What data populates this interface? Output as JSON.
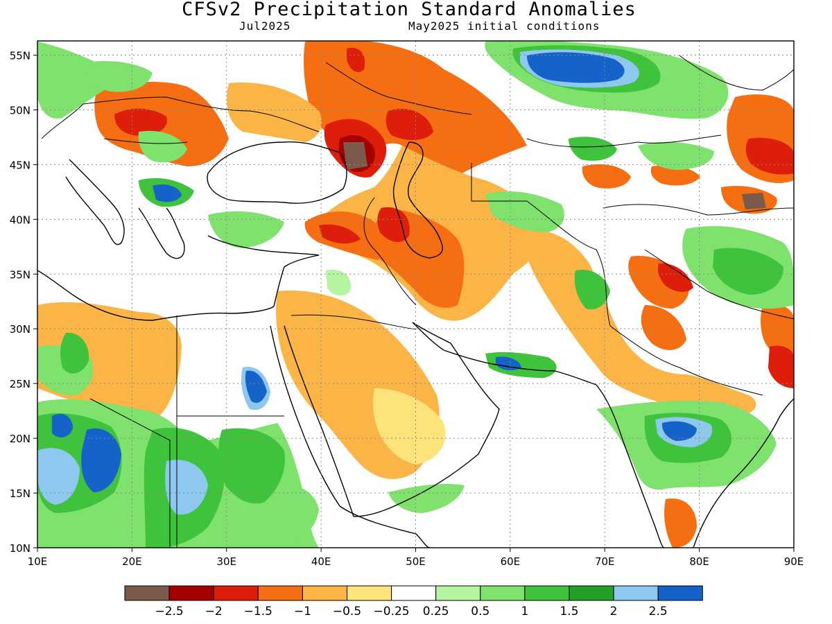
{
  "title": "CFSv2 Precipitation Standard Anomalies",
  "valid_month": "Jul2025",
  "initial_conditions": "May2025 initial conditions",
  "lon_ticks": [
    "10E",
    "20E",
    "30E",
    "40E",
    "50E",
    "60E",
    "70E",
    "80E",
    "90E"
  ],
  "lat_ticks": [
    "55N",
    "50N",
    "45N",
    "40N",
    "35N",
    "30N",
    "25N",
    "20N",
    "15N",
    "10N"
  ],
  "colorbar": {
    "labels": [
      "-2.5",
      "-2",
      "-1.5",
      "-1",
      "-0.5",
      "-0.25",
      "0.25",
      "0.5",
      "1",
      "1.5",
      "2",
      "2.5"
    ],
    "colors": [
      "#7b5a4b",
      "#a50000",
      "#dc1e0a",
      "#f56e12",
      "#fbb446",
      "#fde37a",
      "#ffffff",
      "#b5f5a2",
      "#7ee26c",
      "#3fc33c",
      "#23a126",
      "#8ec8ef",
      "#1563c9"
    ]
  },
  "colors": {
    "orange": "#f56e12",
    "dark_orange": "#f56e12",
    "light_orange": "#fbb446",
    "yellow": "#fde37a",
    "red": "#dc1e0a",
    "dark_red": "#a50000",
    "brown": "#7b5a4b",
    "light_green": "#b5f5a2",
    "green": "#7ee26c",
    "mid_green": "#3fc33c",
    "dark_green": "#23a126",
    "light_blue": "#8ec8ef",
    "blue": "#1563c9"
  }
}
